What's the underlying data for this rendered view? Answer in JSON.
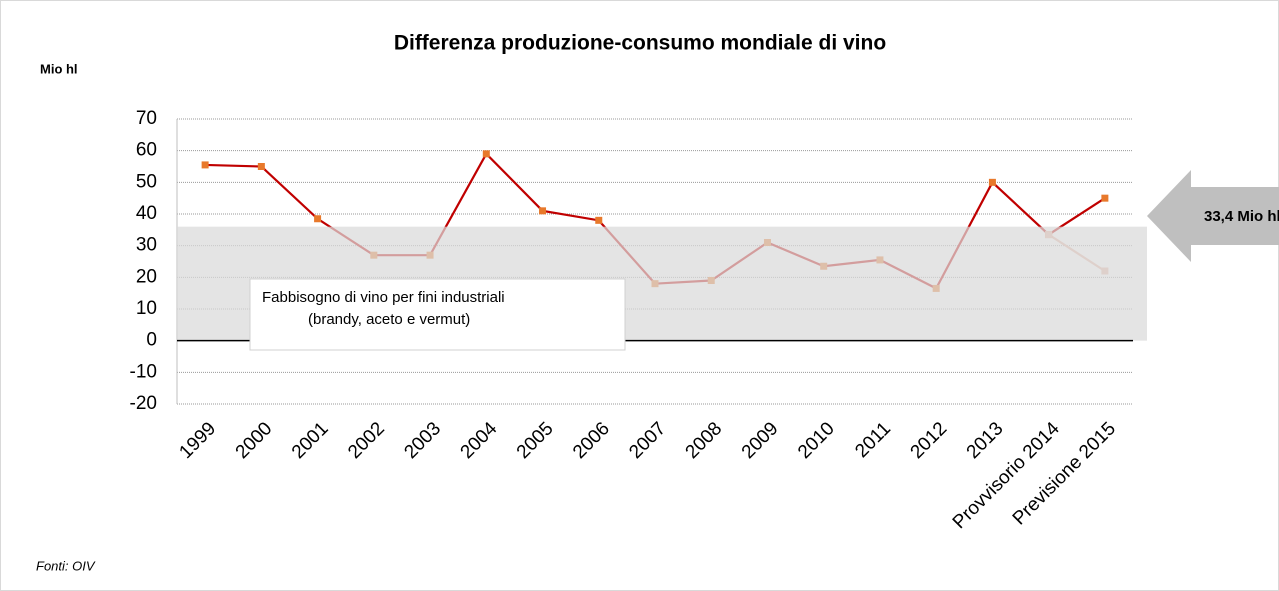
{
  "chart_data": {
    "type": "line",
    "title": "Differenza produzione-consumo mondiale di vino",
    "y_label": "Mio hl",
    "source": "Fonti: OIV",
    "categories": [
      "1999",
      "2000",
      "2001",
      "2002",
      "2003",
      "2004",
      "2005",
      "2006",
      "2007",
      "2008",
      "2009",
      "2010",
      "2011",
      "2012",
      "2013",
      "Provvisorio 2014",
      "Previsione 2015"
    ],
    "series": [
      {
        "color": "#c00000",
        "marker_color": "#e8792b",
        "values": [
          55.5,
          55,
          38.5,
          27,
          27,
          59,
          41,
          38,
          18,
          19,
          31,
          23.5,
          25.5,
          16.5,
          50,
          33.5,
          45
        ]
      },
      {
        "color": "#e9b7a6",
        "marker_color": "#e9b7a6",
        "values": [
          null,
          null,
          null,
          null,
          null,
          null,
          null,
          null,
          null,
          null,
          null,
          null,
          null,
          null,
          null,
          33.5,
          22
        ]
      }
    ],
    "band": [
      0,
      36
    ],
    "band_text": [
      "Fabbisogno di vino per fini industriali",
      "(brandy, aceto e vermut)"
    ],
    "arrow_text": "33,4 Mio hl",
    "ylim": [
      -20,
      70
    ],
    "yticks": [
      -20,
      -10,
      0,
      10,
      20,
      30,
      40,
      50,
      60,
      70
    ],
    "grid": true
  }
}
